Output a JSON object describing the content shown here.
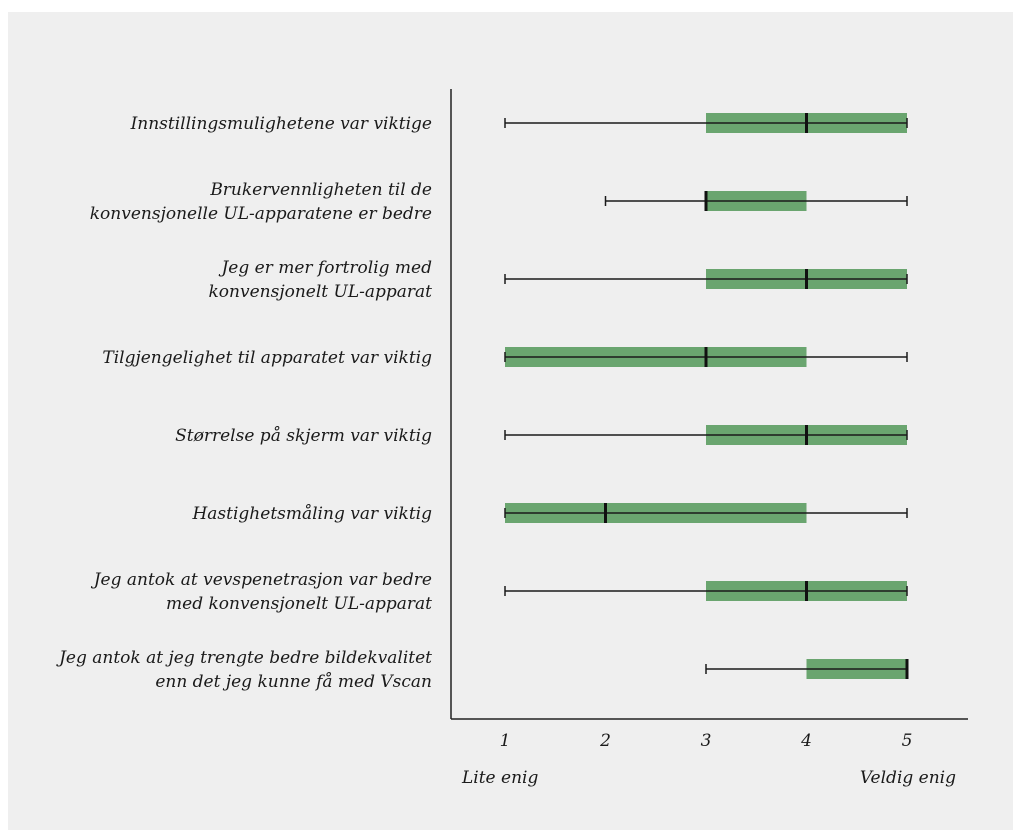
{
  "chart_data": {
    "type": "boxplot",
    "orientation": "horizontal",
    "xlim": [
      1,
      5
    ],
    "x_ticks": [
      "1",
      "2",
      "3",
      "4",
      "5"
    ],
    "x_axis_left_label": "Lite enig",
    "x_axis_right_label": "Veldig enig",
    "box_color": "#6aa56f",
    "items": [
      {
        "label": [
          "Innstillingsmulighetene var viktige"
        ],
        "min": 1,
        "q1": 3,
        "median": 4,
        "q3": 5,
        "max": 5
      },
      {
        "label": [
          "Brukervennligheten til de",
          "konvensjonelle UL-apparatene er bedre"
        ],
        "min": 2,
        "q1": 3,
        "median": 3,
        "q3": 4,
        "max": 5
      },
      {
        "label": [
          "Jeg er mer fortrolig med",
          "konvensjonelt UL-apparat"
        ],
        "min": 1,
        "q1": 3,
        "median": 4,
        "q3": 5,
        "max": 5
      },
      {
        "label": [
          "Tilgjengelighet til apparatet  var viktig"
        ],
        "min": 1,
        "q1": 1,
        "median": 3,
        "q3": 4,
        "max": 5
      },
      {
        "label": [
          "Størrelse på skjerm var viktig"
        ],
        "min": 1,
        "q1": 3,
        "median": 4,
        "q3": 5,
        "max": 5
      },
      {
        "label": [
          "Hastighetsmåling var viktig"
        ],
        "min": 1,
        "q1": 1,
        "median": 2,
        "q3": 4,
        "max": 5
      },
      {
        "label": [
          "Jeg antok at vevspenetrasjon  var bedre",
          "med konvensjonelt UL-apparat"
        ],
        "min": 1,
        "q1": 3,
        "median": 4,
        "q3": 5,
        "max": 5
      },
      {
        "label": [
          "Jeg antok at jeg trengte bedre bildekvalitet",
          "enn det jeg kunne få med Vscan"
        ],
        "min": 3,
        "q1": 4,
        "median": 5,
        "q3": 5,
        "max": 5
      }
    ]
  }
}
